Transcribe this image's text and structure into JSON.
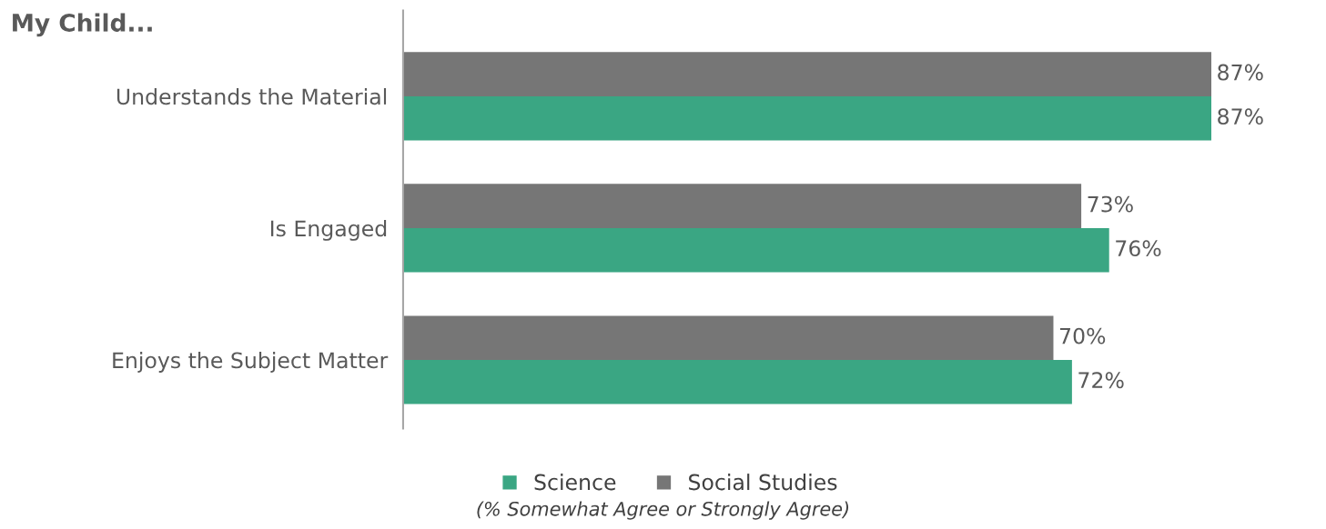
{
  "chart_data": {
    "type": "bar",
    "orientation": "horizontal",
    "title": "My Child...",
    "categories": [
      "Understands the Material",
      "Is Engaged",
      "Enjoys the Subject Matter"
    ],
    "series": [
      {
        "name": "Science",
        "color": "#3aa683",
        "values": [
          87,
          76,
          72
        ],
        "value_labels": [
          "87%",
          "76%",
          "72%"
        ]
      },
      {
        "name": "Social Studies",
        "color": "#767676",
        "values": [
          87,
          73,
          70
        ],
        "value_labels": [
          "87%",
          "73%",
          "70%"
        ]
      }
    ],
    "annotations": [
      "(% Somewhat Agree or Strongly Agree)"
    ],
    "legend": "bottom",
    "grid": false,
    "tick_labels": "y"
  }
}
